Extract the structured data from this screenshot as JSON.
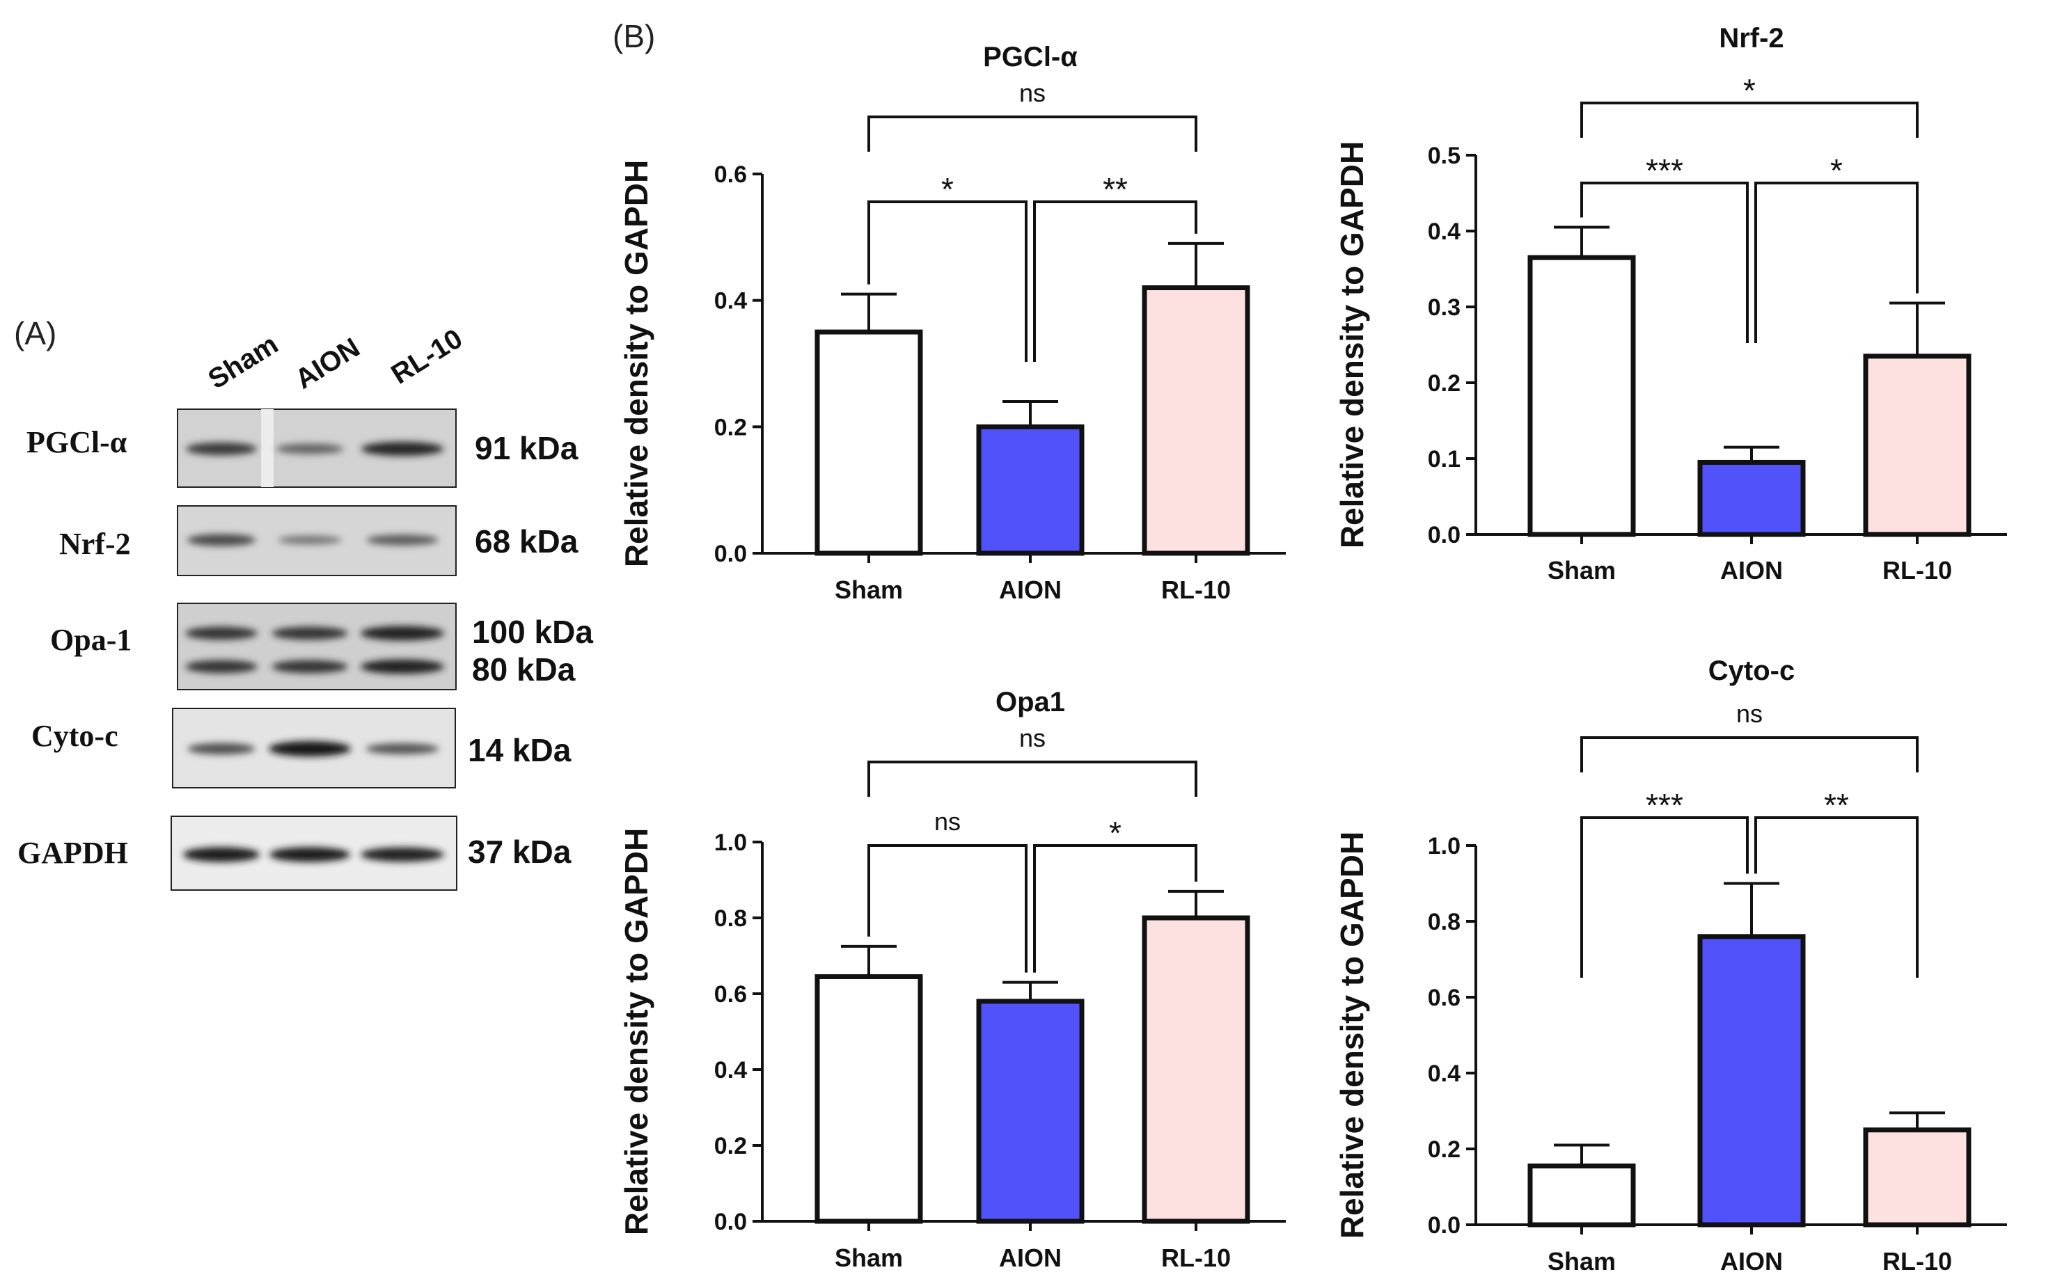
{
  "panel_a": {
    "label": "(A)",
    "lanes": [
      "Sham",
      "AION",
      "RL-10"
    ],
    "blots": [
      {
        "name": "PGCl-α",
        "kda": [
          "91 kDa"
        ],
        "intensity": [
          0.7,
          0.4,
          0.85
        ]
      },
      {
        "name": "Nrf-2",
        "kda": [
          "68 kDa"
        ],
        "intensity": [
          0.6,
          0.25,
          0.45
        ]
      },
      {
        "name": "Opa-1",
        "kda": [
          "100 kDa",
          "80 kDa"
        ],
        "intensity": [
          0.75,
          0.75,
          0.9
        ]
      },
      {
        "name": "Cyto-c",
        "kda": [
          "14 kDa"
        ],
        "intensity": [
          0.55,
          1.0,
          0.5
        ]
      },
      {
        "name": "GAPDH",
        "kda": [
          "37 kDa"
        ],
        "intensity": [
          0.95,
          0.95,
          0.9
        ]
      }
    ]
  },
  "panel_b": {
    "label": "(B)"
  },
  "colors": {
    "Sham": "#ffffff",
    "AION": "#5252fb",
    "RL-10": "#fde1e1"
  },
  "chart_data": [
    {
      "type": "bar",
      "title": "PGCl-α",
      "ylabel": "Relative density to GAPDH",
      "categories": [
        "Sham",
        "AION",
        "RL-10"
      ],
      "values": [
        0.35,
        0.2,
        0.42
      ],
      "errors": [
        0.06,
        0.04,
        0.07
      ],
      "ylim": [
        0,
        0.6
      ],
      "yticks": [
        "0.0",
        "0.2",
        "0.4",
        "0.6"
      ],
      "comparisons": [
        {
          "from": 0,
          "to": 1,
          "label": "*"
        },
        {
          "from": 1,
          "to": 2,
          "label": "**"
        },
        {
          "from": 0,
          "to": 2,
          "label": "ns"
        }
      ]
    },
    {
      "type": "bar",
      "title": "Nrf-2",
      "ylabel": "Relative density to GAPDH",
      "categories": [
        "Sham",
        "AION",
        "RL-10"
      ],
      "values": [
        0.365,
        0.095,
        0.235
      ],
      "errors": [
        0.04,
        0.02,
        0.07
      ],
      "ylim": [
        0,
        0.5
      ],
      "yticks": [
        "0.0",
        "0.1",
        "0.2",
        "0.3",
        "0.4",
        "0.5"
      ],
      "comparisons": [
        {
          "from": 0,
          "to": 1,
          "label": "***"
        },
        {
          "from": 1,
          "to": 2,
          "label": "*"
        },
        {
          "from": 0,
          "to": 2,
          "label": "*"
        }
      ]
    },
    {
      "type": "bar",
      "title": "Opa1",
      "ylabel": "Relative density to GAPDH",
      "categories": [
        "Sham",
        "AION",
        "RL-10"
      ],
      "values": [
        0.645,
        0.58,
        0.8
      ],
      "errors": [
        0.08,
        0.05,
        0.07
      ],
      "ylim": [
        0,
        1.0
      ],
      "yticks": [
        "0.0",
        "0.2",
        "0.4",
        "0.6",
        "0.8",
        "1.0"
      ],
      "comparisons": [
        {
          "from": 0,
          "to": 1,
          "label": "ns"
        },
        {
          "from": 1,
          "to": 2,
          "label": "*"
        },
        {
          "from": 0,
          "to": 2,
          "label": "ns"
        }
      ]
    },
    {
      "type": "bar",
      "title": "Cyto-c",
      "ylabel": "Relative density to GAPDH",
      "categories": [
        "Sham",
        "AION",
        "RL-10"
      ],
      "values": [
        0.155,
        0.76,
        0.25
      ],
      "errors": [
        0.055,
        0.14,
        0.045
      ],
      "ylim": [
        0,
        1.0
      ],
      "yticks": [
        "0.0",
        "0.2",
        "0.4",
        "0.6",
        "0.8",
        "1.0"
      ],
      "comparisons": [
        {
          "from": 0,
          "to": 1,
          "label": "***"
        },
        {
          "from": 1,
          "to": 2,
          "label": "**"
        },
        {
          "from": 0,
          "to": 2,
          "label": "ns"
        }
      ]
    }
  ]
}
